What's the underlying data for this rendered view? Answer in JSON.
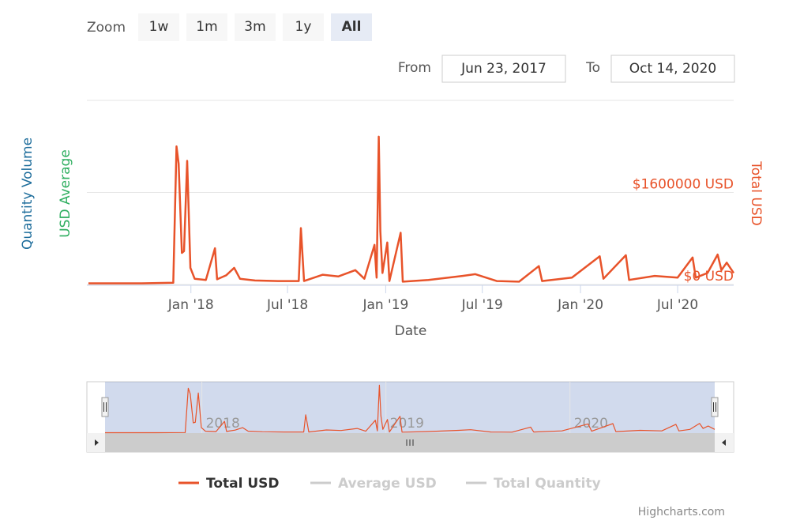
{
  "chart_data": {
    "type": "line",
    "range_selector": {
      "zoom_label": "Zoom",
      "buttons": [
        "1w",
        "1m",
        "3m",
        "1y",
        "All"
      ],
      "selected": 4,
      "from_label": "From",
      "from": "Jun 23, 2017",
      "to_label": "To",
      "to": "Oct 14, 2020"
    },
    "x_label": "Date",
    "y_labels": [
      {
        "text": "Quantity Volume",
        "color": "#1f6e9c"
      },
      {
        "text": "USD Average",
        "color": "#2eae5f"
      }
    ],
    "y2_label": "Total USD",
    "xlim": [
      "2017-06-23",
      "2020-10-14"
    ],
    "xticks": [
      {
        "value": "2018-01-01",
        "label": "Jan '18"
      },
      {
        "value": "2018-07-01",
        "label": "Jul '18"
      },
      {
        "value": "2019-01-01",
        "label": "Jan '19"
      },
      {
        "value": "2019-07-01",
        "label": "Jul '19"
      },
      {
        "value": "2020-01-01",
        "label": "Jan '20"
      },
      {
        "value": "2020-07-01",
        "label": "Jul '20"
      }
    ],
    "ylim": [
      0,
      3200000
    ],
    "yticks": [
      {
        "value": 0,
        "label": "$0 USD"
      },
      {
        "value": 1600000,
        "label": "$1600000 USD"
      }
    ],
    "grid": true,
    "x": [
      "2017-06-23",
      "2017-10-01",
      "2017-11-29",
      "2017-12-05",
      "2017-12-09",
      "2017-12-15",
      "2017-12-19",
      "2017-12-25",
      "2017-12-31",
      "2018-01-08",
      "2018-01-29",
      "2018-02-15",
      "2018-02-19",
      "2018-03-08",
      "2018-03-23",
      "2018-04-03",
      "2018-05-01",
      "2018-06-13",
      "2018-07-22",
      "2018-07-26",
      "2018-08-01",
      "2018-09-05",
      "2018-10-04",
      "2018-11-05",
      "2018-11-22",
      "2018-12-11",
      "2018-12-15",
      "2018-12-19",
      "2018-12-22",
      "2018-12-26",
      "2019-01-04",
      "2019-01-08",
      "2019-01-29",
      "2019-02-02",
      "2019-03-22",
      "2019-05-25",
      "2019-06-18",
      "2019-07-28",
      "2019-09-08",
      "2019-10-15",
      "2019-10-21",
      "2019-12-16",
      "2020-02-06",
      "2020-02-13",
      "2020-03-26",
      "2020-04-01",
      "2020-05-19",
      "2020-07-01",
      "2020-07-29",
      "2020-08-04",
      "2020-08-26",
      "2020-09-14",
      "2020-09-21",
      "2020-10-01",
      "2020-10-14"
    ],
    "series": [
      {
        "name": "Total USD",
        "color": "#e8532a",
        "values": [
          20000,
          20000,
          30000,
          2400000,
          2100000,
          550000,
          580000,
          2150000,
          290000,
          100000,
          80000,
          630000,
          90000,
          160000,
          290000,
          100000,
          70000,
          60000,
          60000,
          980000,
          60000,
          170000,
          140000,
          250000,
          100000,
          690000,
          120000,
          2570000,
          930000,
          200000,
          730000,
          60000,
          900000,
          50000,
          80000,
          150000,
          180000,
          60000,
          50000,
          320000,
          60000,
          120000,
          490000,
          100000,
          510000,
          80000,
          150000,
          120000,
          470000,
          120000,
          200000,
          520000,
          250000,
          380000,
          200000
        ]
      },
      {
        "name": "Average USD",
        "color": "#cccccc"
      },
      {
        "name": "Total Quantity",
        "color": "#cccccc"
      }
    ],
    "navigator": {
      "xticks": [
        {
          "value": "2018-01-01",
          "label": "2018"
        },
        {
          "value": "2019-01-01",
          "label": "2019"
        },
        {
          "value": "2020-01-01",
          "label": "2020"
        }
      ]
    },
    "credits": "Highcharts.com"
  }
}
